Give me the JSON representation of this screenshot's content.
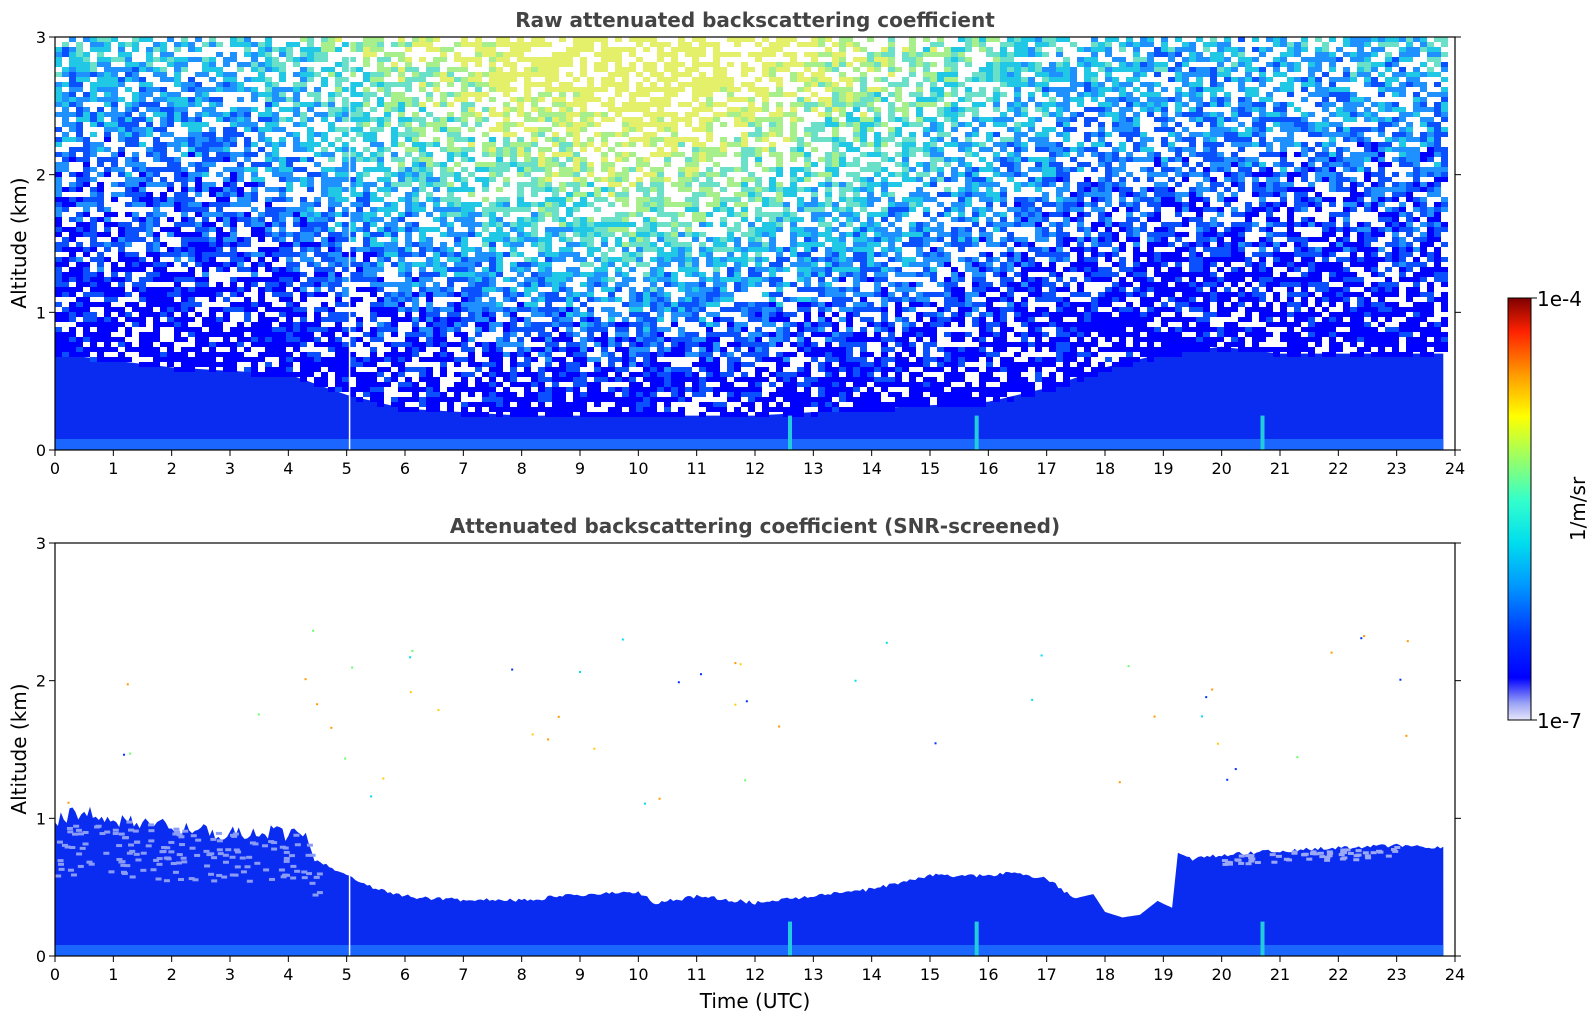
{
  "chart_data": [
    {
      "type": "heatmap",
      "title": "Raw attenuated backscattering coefficient",
      "xlabel": "",
      "ylabel": "Altitude (km)",
      "xlim": [
        0,
        24
      ],
      "ylim": [
        0,
        3
      ],
      "x_ticks": [
        "0",
        "1",
        "2",
        "3",
        "4",
        "5",
        "6",
        "7",
        "8",
        "9",
        "10",
        "11",
        "12",
        "13",
        "14",
        "15",
        "16",
        "17",
        "18",
        "19",
        "20",
        "21",
        "22",
        "23",
        "24"
      ],
      "y_ticks": [
        "0",
        "1",
        "2",
        "3"
      ],
      "data_end_time": 23.8,
      "aerosol_layer_top_km": {
        "time": [
          0,
          2,
          4,
          5,
          6,
          8,
          10,
          12,
          14,
          16,
          17,
          18,
          19,
          20,
          21,
          22,
          23,
          23.8
        ],
        "top": [
          0.7,
          0.6,
          0.55,
          0.4,
          0.3,
          0.25,
          0.25,
          0.25,
          0.3,
          0.35,
          0.45,
          0.6,
          0.7,
          0.75,
          0.7,
          0.7,
          0.7,
          0.7
        ]
      },
      "noise_peak_time_range": [
        6,
        14
      ],
      "vertical_gap_time": 5.05,
      "plume_times": [
        12.6,
        15.8,
        20.7
      ]
    },
    {
      "type": "heatmap",
      "title": "Attenuated backscattering coefficient (SNR-screened)",
      "xlabel": "Time (UTC)",
      "ylabel": "Altitude (km)",
      "xlim": [
        0,
        24
      ],
      "ylim": [
        0,
        3
      ],
      "x_ticks": [
        "0",
        "1",
        "2",
        "3",
        "4",
        "5",
        "6",
        "7",
        "8",
        "9",
        "10",
        "11",
        "12",
        "13",
        "14",
        "15",
        "16",
        "17",
        "18",
        "19",
        "20",
        "21",
        "22",
        "23",
        "24"
      ],
      "y_ticks": [
        "0",
        "1",
        "2",
        "3"
      ],
      "data_end_time": 23.8,
      "layer_top_km": {
        "time": [
          0,
          0.5,
          1,
          2,
          3,
          4,
          4.3,
          4.5,
          5,
          5.5,
          6,
          7,
          8,
          9,
          10,
          10.3,
          11,
          12,
          13,
          14,
          15,
          16,
          16.5,
          17,
          17.5,
          17.8,
          18,
          18.3,
          18.6,
          18.9,
          19,
          19.15,
          19.25,
          19.5,
          20,
          21,
          22,
          23,
          23.8
        ],
        "top": [
          1.05,
          1.1,
          1.05,
          1.0,
          0.95,
          0.95,
          0.9,
          0.7,
          0.6,
          0.5,
          0.45,
          0.42,
          0.42,
          0.46,
          0.48,
          0.4,
          0.45,
          0.4,
          0.45,
          0.5,
          0.6,
          0.6,
          0.62,
          0.58,
          0.42,
          0.45,
          0.32,
          0.28,
          0.3,
          0.4,
          0.38,
          0.35,
          0.75,
          0.72,
          0.75,
          0.78,
          0.8,
          0.82,
          0.8
        ]
      },
      "ragged_top_time_range": [
        0,
        4.5
      ]
    }
  ],
  "colorbar": {
    "label": "1/m/sr",
    "max_label": "1e-4",
    "min_label": "1e-7",
    "scale": "log",
    "range": [
      1e-07,
      0.0001
    ],
    "colormap": "jet"
  }
}
